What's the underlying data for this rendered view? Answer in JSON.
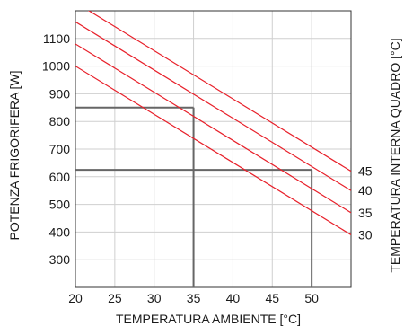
{
  "chart_data": {
    "type": "line",
    "xlabel": "TEMPERATURA AMBIENTE [°C]",
    "ylabel": "POTENZA FRIGORIFERA [W]",
    "y2label": "TEMPERATURA INTERNA QUADRO [°C]",
    "xlim": [
      20,
      55
    ],
    "ylim": [
      200,
      1200
    ],
    "xticks": [
      20,
      25,
      30,
      35,
      40,
      45,
      50
    ],
    "yticks": [
      300,
      400,
      500,
      600,
      700,
      800,
      900,
      1000,
      1100
    ],
    "grid": true,
    "series": [
      {
        "name": "45",
        "x": [
          20,
          55
        ],
        "y": [
          1230,
          620
        ],
        "color": "#e8202a"
      },
      {
        "name": "40",
        "x": [
          20,
          55
        ],
        "y": [
          1160,
          550
        ],
        "color": "#e8202a"
      },
      {
        "name": "35",
        "x": [
          20,
          55
        ],
        "y": [
          1080,
          470
        ],
        "color": "#e8202a"
      },
      {
        "name": "30",
        "x": [
          20,
          55
        ],
        "y": [
          1000,
          390
        ],
        "color": "#e8202a"
      }
    ],
    "reference_lines": [
      {
        "x": 35,
        "y": 850
      },
      {
        "x": 50,
        "y": 625
      }
    ],
    "colors": {
      "line": "#e8202a",
      "reference": "#666666",
      "grid": "#cfcfcf",
      "axis": "#333333"
    }
  }
}
